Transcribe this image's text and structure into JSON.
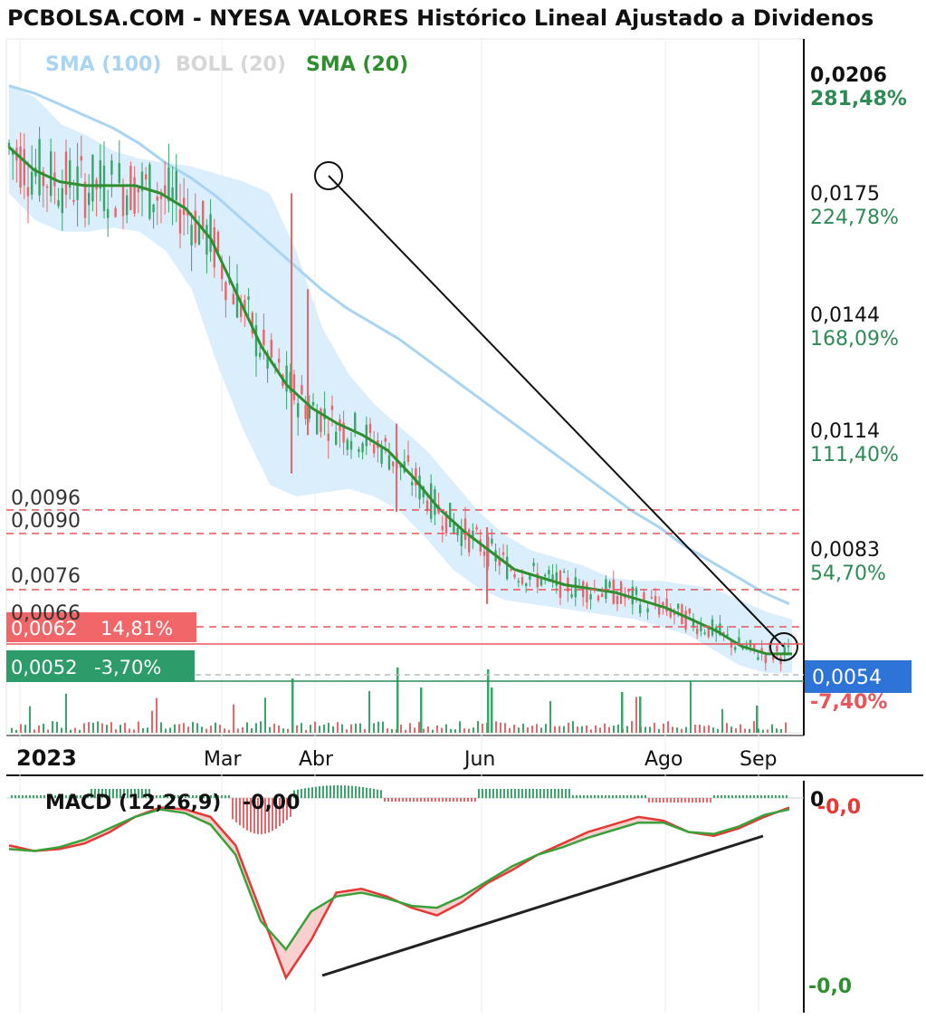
{
  "title": "PCBOLSA.COM - NYESA VALORES Histórico Lineal Ajustado a Dividenos",
  "colors": {
    "sma100": "#a9d4f2",
    "boll": "#d6d6d6",
    "boll_fill": "#dbeefc",
    "sma20": "#2f8f2f",
    "up": "#3aa56a",
    "down": "#e8666a",
    "pct_up": "#2e8b57",
    "pct_down": "#e8555a",
    "current_box": "#2d73d8",
    "macd_line": "#e53935",
    "signal_line": "#3aa13a"
  },
  "legend": {
    "sma100": "SMA (100)",
    "boll": "BOLL (20)",
    "sma20": "SMA (20)"
  },
  "chart_data": [
    {
      "type": "line",
      "name": "price",
      "ylim": [
        0.0046,
        0.0206
      ],
      "y_axis_ticks": [
        {
          "value": "0,0206",
          "pct": "281,48%"
        },
        {
          "value": "0,0175",
          "pct": "224,78%"
        },
        {
          "value": "0,0144",
          "pct": "168,09%"
        },
        {
          "value": "0,0114",
          "pct": "111,40%"
        },
        {
          "value": "0,0083",
          "pct": "54,70%"
        }
      ],
      "x_labels": [
        "2023",
        "Mar",
        "Abr",
        "Jun",
        "Ago",
        "Sep"
      ],
      "current": {
        "value": "0,0054",
        "pct": "-7,40%"
      },
      "levels": [
        "0,0096",
        "0,0090",
        "0,0076",
        "0,0066"
      ],
      "tag_red": {
        "value": "0,0062",
        "pct": "14,81%"
      },
      "tag_green": {
        "value": "0,0052",
        "pct": "-3,70%"
      },
      "sma20": [
        0.0187,
        0.0181,
        0.0178,
        0.0177,
        0.0177,
        0.0177,
        0.0175,
        0.0171,
        0.0163,
        0.0149,
        0.0135,
        0.0125,
        0.0119,
        0.0115,
        0.0112,
        0.0108,
        0.0101,
        0.0093,
        0.0087,
        0.0082,
        0.0077,
        0.0075,
        0.0073,
        0.0072,
        0.0071,
        0.0069,
        0.0067,
        0.0064,
        0.0061,
        0.0057,
        0.0055,
        0.0055
      ],
      "sma100": [
        0.0203,
        0.0201,
        0.0198,
        0.0195,
        0.0192,
        0.0188,
        0.0183,
        0.0179,
        0.0174,
        0.0168,
        0.0162,
        0.0156,
        0.015,
        0.0145,
        0.0141,
        0.0137,
        0.0132,
        0.0127,
        0.0122,
        0.0117,
        0.0112,
        0.0107,
        0.0102,
        0.0097,
        0.0092,
        0.0088,
        0.0083,
        0.0079,
        0.0075,
        0.0071,
        0.0068
      ],
      "boll_upper": [
        0.0203,
        0.02,
        0.0193,
        0.019,
        0.0186,
        0.0184,
        0.0183,
        0.0182,
        0.018,
        0.0178,
        0.0175,
        0.016,
        0.014,
        0.0128,
        0.012,
        0.0114,
        0.0108,
        0.01,
        0.0092,
        0.0086,
        0.0082,
        0.008,
        0.0078,
        0.0075,
        0.0074,
        0.0074,
        0.0073,
        0.0072,
        0.0069,
        0.0066,
        0.0064
      ],
      "boll_lower": [
        0.0175,
        0.0168,
        0.0165,
        0.0165,
        0.0166,
        0.0165,
        0.016,
        0.015,
        0.013,
        0.0113,
        0.0099,
        0.0096,
        0.0097,
        0.0098,
        0.0096,
        0.0092,
        0.0085,
        0.0077,
        0.0072,
        0.0069,
        0.0068,
        0.0067,
        0.0066,
        0.0065,
        0.0064,
        0.0062,
        0.006,
        0.0056,
        0.0052,
        0.005,
        0.005
      ]
    },
    {
      "type": "line",
      "name": "MACD",
      "label": "MACD (12,26,9)",
      "value": "-0,00",
      "zero_label": "0",
      "right_top": "-0,0",
      "right_bottom": "-0,0",
      "ylim": [
        -100,
        10
      ],
      "macd": [
        -25,
        -28,
        -27,
        -24,
        -18,
        -10,
        -5,
        -6,
        -10,
        -25,
        -60,
        -95,
        -75,
        -50,
        -48,
        -52,
        -58,
        -62,
        -55,
        -45,
        -38,
        -30,
        -24,
        -18,
        -14,
        -10,
        -12,
        -18,
        -20,
        -16,
        -10,
        -5
      ],
      "signal": [
        -27,
        -28,
        -26,
        -22,
        -16,
        -10,
        -6,
        -8,
        -14,
        -30,
        -65,
        -80,
        -60,
        -52,
        -50,
        -53,
        -57,
        -58,
        -52,
        -44,
        -36,
        -30,
        -26,
        -21,
        -17,
        -13,
        -13,
        -18,
        -19,
        -15,
        -9,
        -6
      ]
    }
  ]
}
